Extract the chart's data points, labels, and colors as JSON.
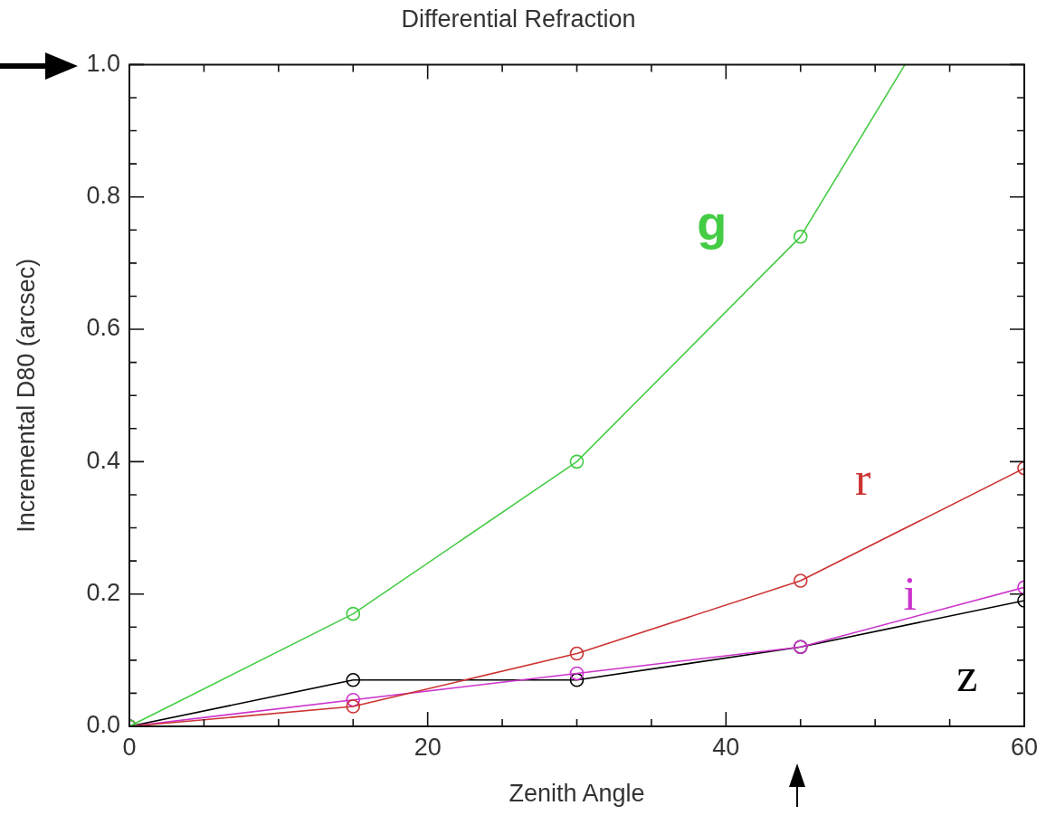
{
  "chart_data": {
    "type": "line",
    "title": "Differential Refraction",
    "xlabel": "Zenith Angle",
    "ylabel": "Incremental D80 (arcsec)",
    "x": [
      0,
      15,
      30,
      45,
      60
    ],
    "series": [
      {
        "name": "g",
        "color": "#44cc44",
        "x": [
          0,
          15,
          30,
          45,
          52
        ],
        "values": [
          0,
          0.17,
          0.4,
          0.74,
          1.0
        ]
      },
      {
        "name": "r",
        "color": "#cc3333",
        "values": [
          0,
          0.03,
          0.11,
          0.22,
          0.39
        ]
      },
      {
        "name": "i",
        "color": "#cc33cc",
        "values": [
          0,
          0.04,
          0.08,
          0.12,
          0.21
        ]
      },
      {
        "name": "z",
        "color": "#000000",
        "values": [
          0,
          0.07,
          0.07,
          0.12,
          0.19
        ]
      }
    ],
    "xlim": [
      0,
      60
    ],
    "xticks": [
      0,
      {
        "value": 5,
        "label": null
      },
      {
        "value": 10,
        "label": null
      },
      {
        "value": 15,
        "label": null
      },
      20,
      {
        "value": 25,
        "label": null
      },
      {
        "value": 30,
        "label": null
      },
      {
        "value": 35,
        "label": null
      },
      40,
      {
        "value": 45,
        "label": null
      },
      {
        "value": 50,
        "label": null
      },
      {
        "value": 55,
        "label": null
      },
      60
    ],
    "ylim": [
      0,
      1
    ],
    "yticks": [
      {
        "value": 0,
        "label": "0.0"
      },
      {
        "value": 0.05,
        "label": null
      },
      {
        "value": 0.1,
        "label": null
      },
      {
        "value": 0.15,
        "label": null
      },
      0.2,
      {
        "value": 0.25,
        "label": null
      },
      {
        "value": 0.3,
        "label": null
      },
      {
        "value": 0.35,
        "label": null
      },
      0.4,
      {
        "value": 0.45,
        "label": null
      },
      {
        "value": 0.5,
        "label": null
      },
      {
        "value": 0.55,
        "label": null
      },
      0.6,
      {
        "value": 0.65,
        "label": null
      },
      {
        "value": 0.7,
        "label": null
      },
      {
        "value": 0.75,
        "label": null
      },
      0.8,
      {
        "value": 0.85,
        "label": null
      },
      {
        "value": 0.9,
        "label": null
      },
      {
        "value": 0.95,
        "label": null
      },
      {
        "value": 1,
        "label": "1.0"
      }
    ],
    "marker": "circle",
    "line_style": "solid"
  }
}
